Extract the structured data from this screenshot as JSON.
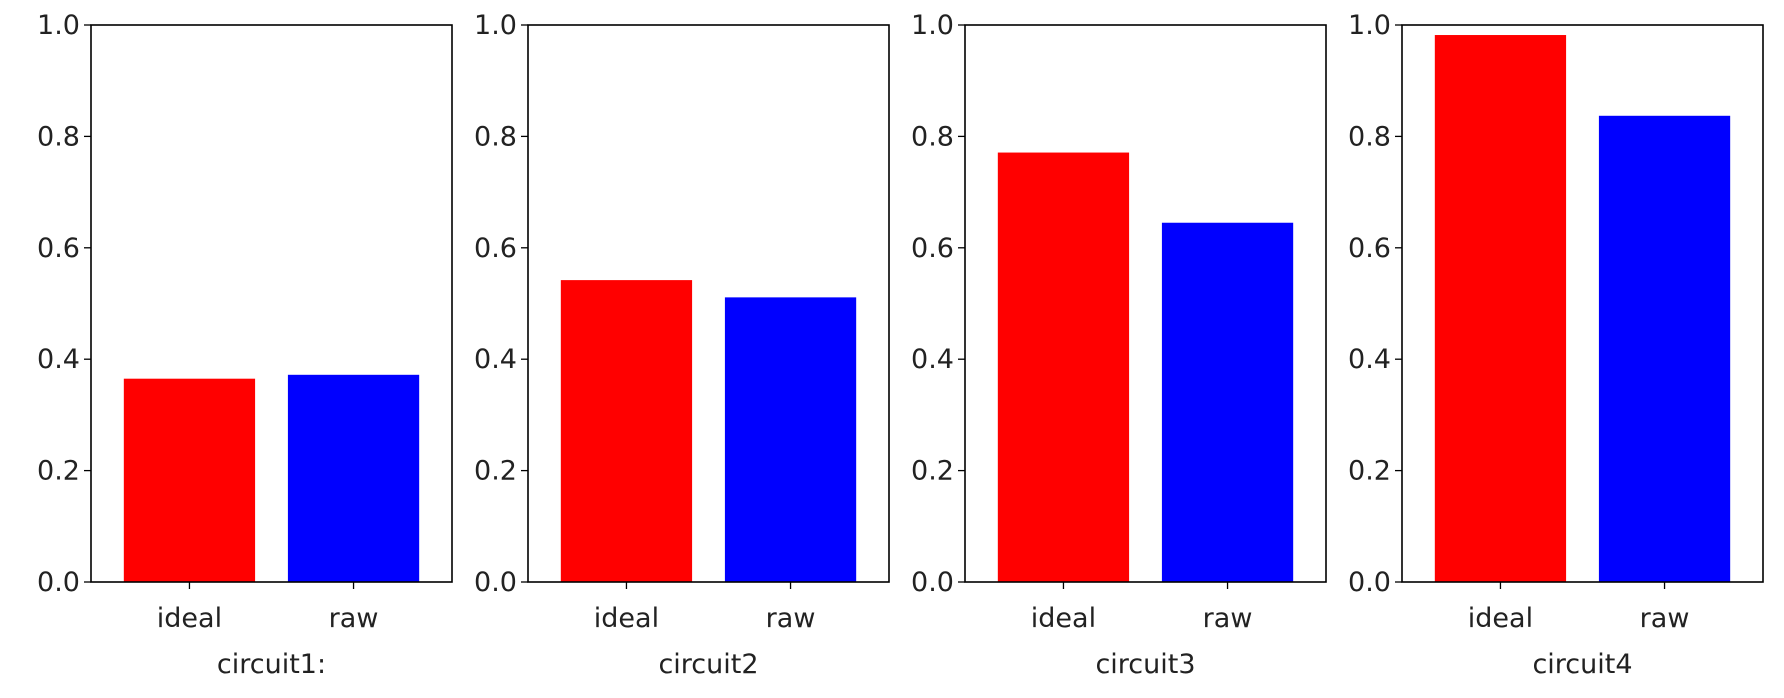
{
  "chart_data": [
    {
      "type": "bar",
      "categories": [
        "ideal",
        "raw"
      ],
      "values": [
        0.365,
        0.372
      ],
      "xlabel": "circuit1:",
      "ylabel": "",
      "ylim": [
        0,
        1.0
      ],
      "yticks": [
        "0.0",
        "0.2",
        "0.4",
        "0.6",
        "0.8",
        "1.0"
      ],
      "grid": false
    },
    {
      "type": "bar",
      "categories": [
        "ideal",
        "raw"
      ],
      "values": [
        0.542,
        0.511
      ],
      "xlabel": "circuit2",
      "ylabel": "",
      "ylim": [
        0,
        1.0
      ],
      "yticks": [
        "0.0",
        "0.2",
        "0.4",
        "0.6",
        "0.8",
        "1.0"
      ],
      "grid": false
    },
    {
      "type": "bar",
      "categories": [
        "ideal",
        "raw"
      ],
      "values": [
        0.771,
        0.645
      ],
      "xlabel": "circuit3",
      "ylabel": "",
      "ylim": [
        0,
        1.0
      ],
      "yticks": [
        "0.0",
        "0.2",
        "0.4",
        "0.6",
        "0.8",
        "1.0"
      ],
      "grid": false
    },
    {
      "type": "bar",
      "categories": [
        "ideal",
        "raw"
      ],
      "values": [
        0.982,
        0.837
      ],
      "xlabel": "circuit4",
      "ylabel": "",
      "ylim": [
        0,
        1.0
      ],
      "yticks": [
        "0.0",
        "0.2",
        "0.4",
        "0.6",
        "0.8",
        "1.0"
      ],
      "grid": false
    }
  ],
  "colors": {
    "ideal": "#ff0000",
    "raw": "#0000ff"
  }
}
